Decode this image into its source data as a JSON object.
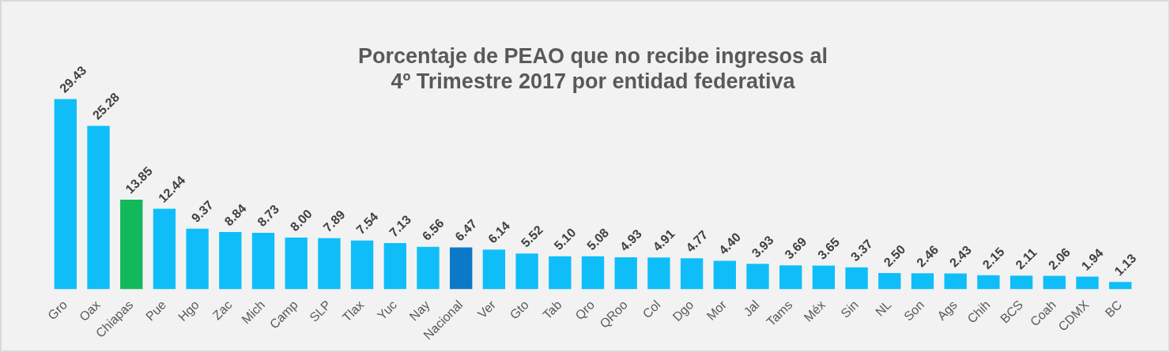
{
  "chart_data": {
    "type": "bar",
    "title": "Porcentaje de PEAO que no recibe ingresos al\n4º Trimestre 2017 por entidad federativa",
    "categories": [
      "Gro",
      "Oax",
      "Chiapas",
      "Pue",
      "Hgo",
      "Zac",
      "Mich",
      "Camp",
      "SLP",
      "Tlax",
      "Yuc",
      "Nay",
      "Nacional",
      "Ver",
      "Gto",
      "Tab",
      "Qro",
      "QRoo",
      "Col",
      "Dgo",
      "Mor",
      "Jal",
      "Tams",
      "Méx",
      "Sin",
      "NL",
      "Son",
      "Ags",
      "Chih",
      "BCS",
      "Coah",
      "CDMX",
      "BC"
    ],
    "values": [
      29.43,
      25.28,
      13.85,
      12.44,
      9.37,
      8.84,
      8.73,
      8.0,
      7.89,
      7.54,
      7.13,
      6.56,
      6.47,
      6.14,
      5.52,
      5.1,
      5.08,
      4.93,
      4.91,
      4.77,
      4.4,
      3.93,
      3.69,
      3.65,
      3.37,
      2.5,
      2.46,
      2.43,
      2.15,
      2.11,
      2.06,
      1.94,
      1.13
    ],
    "value_labels": [
      "29.43",
      "25.28",
      "13.85",
      "12.44",
      "9.37",
      "8.84",
      "8.73",
      "8.00",
      "7.89",
      "7.54",
      "7.13",
      "6.56",
      "6.47",
      "6.14",
      "5.52",
      "5.10",
      "5.08",
      "4.93",
      "4.91",
      "4.77",
      "4.40",
      "3.93",
      "3.69",
      "3.65",
      "3.37",
      "2.50",
      "2.46",
      "2.43",
      "2.15",
      "2.11",
      "2.06",
      "1.94",
      "1.13"
    ],
    "colors": [
      "#0fbef8",
      "#0fbef8",
      "#12b85a",
      "#0fbef8",
      "#0fbef8",
      "#0fbef8",
      "#0fbef8",
      "#0fbef8",
      "#0fbef8",
      "#0fbef8",
      "#0fbef8",
      "#0fbef8",
      "#0b78c8",
      "#0fbef8",
      "#0fbef8",
      "#0fbef8",
      "#0fbef8",
      "#0fbef8",
      "#0fbef8",
      "#0fbef8",
      "#0fbef8",
      "#0fbef8",
      "#0fbef8",
      "#0fbef8",
      "#0fbef8",
      "#0fbef8",
      "#0fbef8",
      "#0fbef8",
      "#0fbef8",
      "#0fbef8",
      "#0fbef8",
      "#0fbef8",
      "#0fbef8"
    ],
    "tick_labels": "x",
    "grid": false,
    "legend": false
  }
}
